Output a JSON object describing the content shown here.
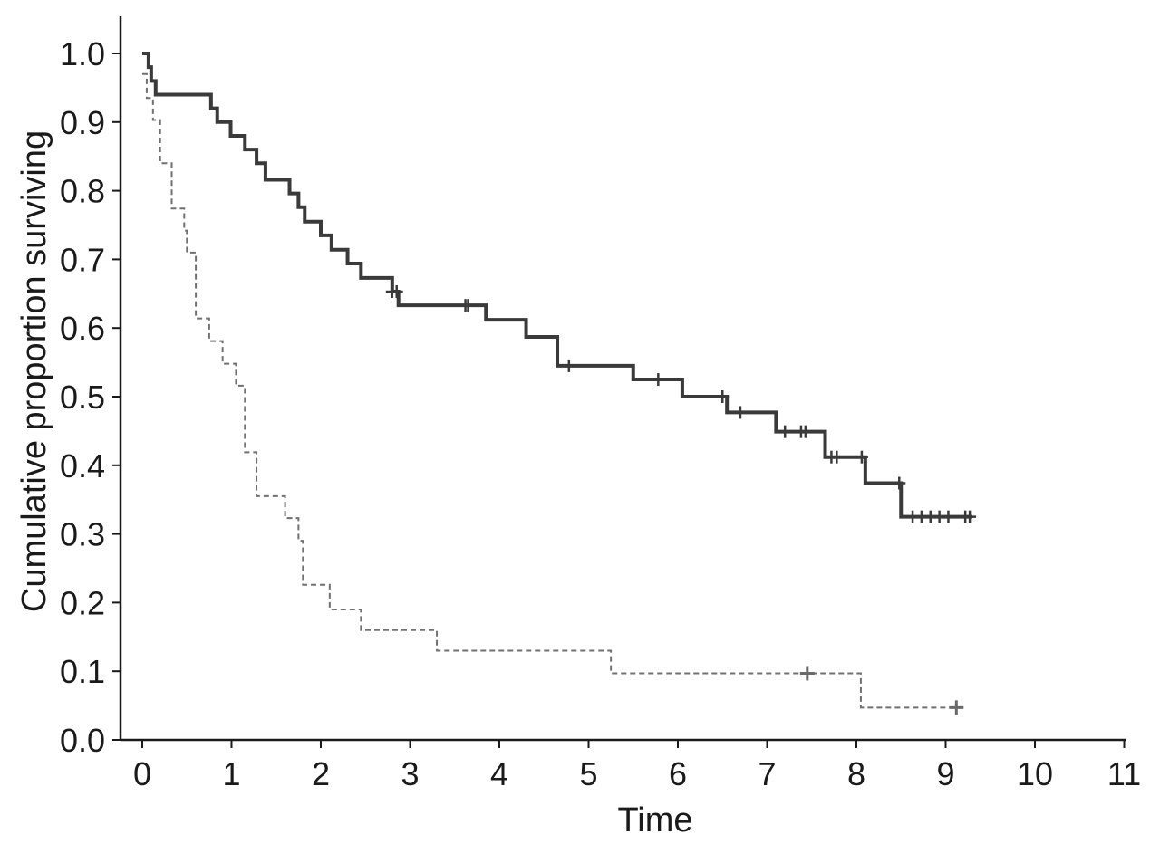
{
  "chart_data": {
    "type": "line",
    "step": true,
    "title": "",
    "xlabel": "Time",
    "ylabel": "Cumulative proportion surviving",
    "xlim": [
      0,
      11
    ],
    "ylim": [
      0,
      1.0
    ],
    "xticks": [
      "0",
      "1",
      "2",
      "3",
      "4",
      "5",
      "6",
      "7",
      "8",
      "9",
      "10",
      "11"
    ],
    "yticks": [
      "0.0",
      "0.1",
      "0.2",
      "0.3",
      "0.4",
      "0.5",
      "0.6",
      "0.7",
      "0.8",
      "0.9",
      "1.0"
    ],
    "grid": false,
    "legend": "none",
    "series": [
      {
        "style": "solid",
        "color": "#3a3a3a",
        "points": [
          [
            0.0,
            1.0
          ],
          [
            0.07,
            0.98
          ],
          [
            0.1,
            0.96
          ],
          [
            0.15,
            0.94
          ],
          [
            0.77,
            0.92
          ],
          [
            0.84,
            0.9
          ],
          [
            0.99,
            0.88
          ],
          [
            1.15,
            0.86
          ],
          [
            1.28,
            0.84
          ],
          [
            1.38,
            0.816
          ],
          [
            1.65,
            0.796
          ],
          [
            1.75,
            0.776
          ],
          [
            1.82,
            0.755
          ],
          [
            2.0,
            0.735
          ],
          [
            2.12,
            0.714
          ],
          [
            2.3,
            0.694
          ],
          [
            2.45,
            0.673
          ],
          [
            2.8,
            0.653
          ],
          [
            2.87,
            0.633
          ],
          [
            3.85,
            0.612
          ],
          [
            4.3,
            0.587
          ],
          [
            4.65,
            0.545
          ],
          [
            5.5,
            0.525
          ],
          [
            6.05,
            0.5
          ],
          [
            6.55,
            0.477
          ],
          [
            7.1,
            0.449
          ],
          [
            7.65,
            0.412
          ],
          [
            8.1,
            0.374
          ],
          [
            8.5,
            0.325
          ],
          [
            9.3,
            0.325
          ]
        ],
        "censored": [
          2.8,
          2.85,
          3.62,
          3.65,
          4.78,
          5.78,
          6.5,
          6.7,
          7.2,
          7.38,
          7.43,
          7.72,
          7.78,
          8.06,
          8.48,
          8.63,
          8.73,
          8.83,
          8.93,
          9.03,
          9.22,
          9.27
        ]
      },
      {
        "style": "dashed",
        "color": "#707070",
        "points": [
          [
            0.0,
            0.97
          ],
          [
            0.05,
            0.935
          ],
          [
            0.12,
            0.903
          ],
          [
            0.2,
            0.84
          ],
          [
            0.33,
            0.774
          ],
          [
            0.47,
            0.742
          ],
          [
            0.5,
            0.71
          ],
          [
            0.6,
            0.614
          ],
          [
            0.75,
            0.581
          ],
          [
            0.9,
            0.548
          ],
          [
            1.05,
            0.516
          ],
          [
            1.15,
            0.419
          ],
          [
            1.28,
            0.355
          ],
          [
            1.6,
            0.323
          ],
          [
            1.75,
            0.29
          ],
          [
            1.8,
            0.226
          ],
          [
            2.1,
            0.19
          ],
          [
            2.45,
            0.16
          ],
          [
            3.3,
            0.13
          ],
          [
            5.25,
            0.097
          ],
          [
            8.05,
            0.047
          ],
          [
            9.15,
            0.047
          ]
        ],
        "censored": [
          7.45,
          9.12
        ]
      }
    ]
  }
}
